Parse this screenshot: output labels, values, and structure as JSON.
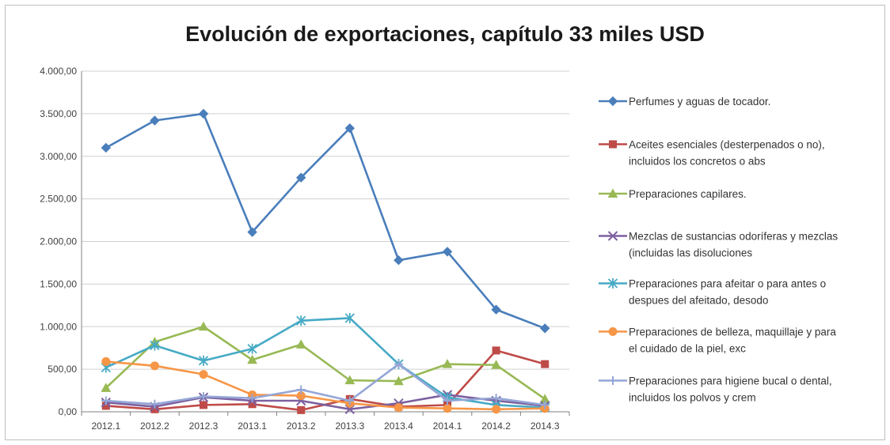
{
  "chart_data": {
    "type": "line",
    "title": "Evolución de exportaciones, capítulo 33 miles USD",
    "xlabel": "",
    "ylabel": "",
    "categories": [
      "2012.1",
      "2012.2",
      "2012.3",
      "2013.1",
      "2013.2",
      "2013.3",
      "2013.4",
      "2014.1",
      "2014.2",
      "2014.3"
    ],
    "ylim": [
      0,
      4000
    ],
    "yticks": [
      0,
      500,
      1000,
      1500,
      2000,
      2500,
      3000,
      3500,
      4000
    ],
    "ytick_labels": [
      "0,00",
      "500,00",
      "1.000,00",
      "1.500,00",
      "2.000,00",
      "2.500,00",
      "3.000,00",
      "3.500,00",
      "4.000,00"
    ],
    "grid": true,
    "legend_position": "right",
    "series": [
      {
        "name": "Perfumes y aguas de tocador.",
        "color": "#4a7ebb",
        "marker": "diamond",
        "values": [
          3100,
          3420,
          3500,
          2110,
          2750,
          3330,
          1780,
          1880,
          1200,
          980
        ]
      },
      {
        "name": "Aceites esenciales (desterpenados o no), incluidos los concretos o abs",
        "color": "#be4b48",
        "marker": "square",
        "values": [
          70,
          30,
          80,
          90,
          20,
          150,
          60,
          80,
          720,
          560
        ]
      },
      {
        "name": "Preparaciones capilares.",
        "color": "#98b954",
        "marker": "triangle",
        "values": [
          280,
          820,
          1000,
          610,
          790,
          370,
          360,
          560,
          550,
          150
        ]
      },
      {
        "name": "Mezclas de sustancias odoríferas y mezclas (incluidas las disoluciones",
        "color": "#7d60a0",
        "marker": "x",
        "values": [
          110,
          60,
          170,
          130,
          130,
          30,
          100,
          200,
          130,
          70
        ]
      },
      {
        "name": "Preparaciones para afeitar o para antes o despues del afeitado, desodo",
        "color": "#46aac5",
        "marker": "star",
        "values": [
          520,
          780,
          600,
          740,
          1070,
          1100,
          560,
          170,
          80,
          50
        ]
      },
      {
        "name": "Preparaciones de belleza, maquillaje y para el cuidado de la piel, exc",
        "color": "#f79646",
        "marker": "circle",
        "values": [
          590,
          540,
          440,
          200,
          190,
          100,
          50,
          40,
          30,
          40
        ]
      },
      {
        "name": "Preparaciones para higiene bucal o dental, incluidos los polvos y crem",
        "color": "#94a6d6",
        "marker": "plus",
        "values": [
          130,
          90,
          180,
          160,
          260,
          130,
          560,
          130,
          160,
          80
        ]
      }
    ],
    "legend_lines": [
      [
        "Perfumes y aguas de tocador."
      ],
      [
        "Aceites esenciales (desterpenados o no),",
        "incluidos los concretos o abs"
      ],
      [
        "Preparaciones capilares."
      ],
      [
        "Mezclas de sustancias odoríferas y mezclas",
        "(incluidas las disoluciones"
      ],
      [
        "Preparaciones para afeitar o para antes o",
        "despues del afeitado, desodo"
      ],
      [
        "Preparaciones de belleza, maquillaje y para",
        "el cuidado de la piel, exc"
      ],
      [
        "Preparaciones para higiene bucal o dental,",
        "incluidos los polvos y crem"
      ]
    ]
  }
}
